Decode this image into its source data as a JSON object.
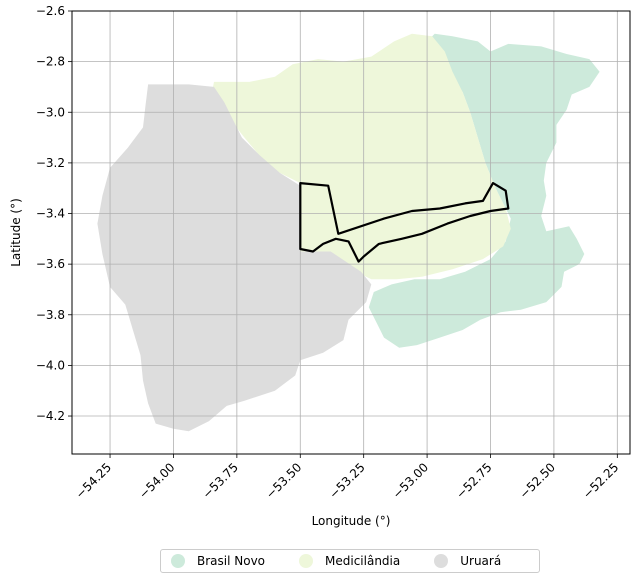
{
  "chart_data": {
    "type": "map",
    "title": "",
    "xlabel": "Longitude (°)",
    "ylabel": "Latitude (°)",
    "xlim": [
      -54.4,
      -52.2
    ],
    "ylim": [
      -4.35,
      -2.6
    ],
    "xticks": [
      -54.25,
      -54.0,
      -53.75,
      -53.5,
      -53.25,
      -53.0,
      -52.75,
      -52.5,
      -52.25
    ],
    "xtick_labels": [
      "−54.25",
      "−54.00",
      "−53.75",
      "−53.50",
      "−53.25",
      "−53.00",
      "−52.75",
      "−52.50",
      "−52.25"
    ],
    "yticks": [
      -2.6,
      -2.8,
      -3.0,
      -3.2,
      -3.4,
      -3.6,
      -3.8,
      -4.0,
      -4.2
    ],
    "ytick_labels": [
      "−2.6",
      "−2.8",
      "−3.0",
      "−3.2",
      "−3.4",
      "−3.6",
      "−3.8",
      "−4.0",
      "−4.2"
    ],
    "grid": true,
    "legend_position": "bottom-center",
    "regions": [
      {
        "name": "Brasil Novo",
        "color": "#cdeadb",
        "polygon": [
          [
            -53.0,
            -2.72
          ],
          [
            -52.97,
            -2.69
          ],
          [
            -52.9,
            -2.7
          ],
          [
            -52.8,
            -2.72
          ],
          [
            -52.75,
            -2.76
          ],
          [
            -52.68,
            -2.73
          ],
          [
            -52.55,
            -2.74
          ],
          [
            -52.45,
            -2.77
          ],
          [
            -52.36,
            -2.79
          ],
          [
            -52.32,
            -2.84
          ],
          [
            -52.36,
            -2.9
          ],
          [
            -52.43,
            -2.93
          ],
          [
            -52.45,
            -2.99
          ],
          [
            -52.49,
            -3.05
          ],
          [
            -52.49,
            -3.12
          ],
          [
            -52.53,
            -3.2
          ],
          [
            -52.54,
            -3.27
          ],
          [
            -52.53,
            -3.33
          ],
          [
            -52.55,
            -3.41
          ],
          [
            -52.53,
            -3.47
          ],
          [
            -52.44,
            -3.45
          ],
          [
            -52.41,
            -3.5
          ],
          [
            -52.38,
            -3.56
          ],
          [
            -52.4,
            -3.6
          ],
          [
            -52.46,
            -3.63
          ],
          [
            -52.47,
            -3.69
          ],
          [
            -52.53,
            -3.75
          ],
          [
            -52.63,
            -3.78
          ],
          [
            -52.71,
            -3.79
          ],
          [
            -52.79,
            -3.82
          ],
          [
            -52.86,
            -3.86
          ],
          [
            -52.95,
            -3.89
          ],
          [
            -53.04,
            -3.92
          ],
          [
            -53.11,
            -3.93
          ],
          [
            -53.17,
            -3.89
          ],
          [
            -53.2,
            -3.83
          ],
          [
            -53.23,
            -3.77
          ],
          [
            -53.21,
            -3.71
          ],
          [
            -53.14,
            -3.68
          ],
          [
            -53.05,
            -3.66
          ],
          [
            -52.95,
            -3.66
          ],
          [
            -52.85,
            -3.63
          ],
          [
            -52.75,
            -3.58
          ],
          [
            -52.69,
            -3.51
          ],
          [
            -52.67,
            -3.42
          ],
          [
            -52.73,
            -3.3
          ],
          [
            -52.77,
            -3.2
          ],
          [
            -52.8,
            -3.1
          ],
          [
            -52.83,
            -3.0
          ],
          [
            -52.86,
            -2.92
          ],
          [
            -52.92,
            -2.85
          ],
          [
            -52.96,
            -2.78
          ]
        ]
      },
      {
        "name": "Medicilândia",
        "color": "#eef7da",
        "polygon": [
          [
            -53.84,
            -2.88
          ],
          [
            -53.7,
            -2.88
          ],
          [
            -53.6,
            -2.86
          ],
          [
            -53.53,
            -2.81
          ],
          [
            -53.43,
            -2.79
          ],
          [
            -53.33,
            -2.8
          ],
          [
            -53.22,
            -2.78
          ],
          [
            -53.13,
            -2.72
          ],
          [
            -53.06,
            -2.69
          ],
          [
            -52.98,
            -2.7
          ],
          [
            -52.93,
            -2.76
          ],
          [
            -52.9,
            -2.84
          ],
          [
            -52.86,
            -2.92
          ],
          [
            -52.83,
            -3.0
          ],
          [
            -52.8,
            -3.1
          ],
          [
            -52.77,
            -3.2
          ],
          [
            -52.73,
            -3.3
          ],
          [
            -52.69,
            -3.38
          ],
          [
            -52.67,
            -3.46
          ],
          [
            -52.7,
            -3.53
          ],
          [
            -52.78,
            -3.58
          ],
          [
            -52.9,
            -3.62
          ],
          [
            -53.02,
            -3.65
          ],
          [
            -53.12,
            -3.66
          ],
          [
            -53.22,
            -3.66
          ],
          [
            -53.28,
            -3.63
          ],
          [
            -53.33,
            -3.6
          ],
          [
            -53.38,
            -3.55
          ],
          [
            -53.5,
            -3.55
          ],
          [
            -53.5,
            -3.28
          ],
          [
            -53.62,
            -3.22
          ],
          [
            -53.72,
            -3.1
          ],
          [
            -53.8,
            -3.0
          ],
          [
            -53.85,
            -2.93
          ]
        ]
      },
      {
        "name": "Uruará",
        "color": "#dddddd",
        "polygon": [
          [
            -54.1,
            -2.89
          ],
          [
            -53.94,
            -2.89
          ],
          [
            -53.84,
            -2.9
          ],
          [
            -53.8,
            -2.96
          ],
          [
            -53.76,
            -3.04
          ],
          [
            -53.73,
            -3.1
          ],
          [
            -53.66,
            -3.17
          ],
          [
            -53.58,
            -3.24
          ],
          [
            -53.5,
            -3.29
          ],
          [
            -53.5,
            -3.55
          ],
          [
            -53.38,
            -3.55
          ],
          [
            -53.32,
            -3.59
          ],
          [
            -53.26,
            -3.63
          ],
          [
            -53.22,
            -3.68
          ],
          [
            -53.24,
            -3.75
          ],
          [
            -53.31,
            -3.82
          ],
          [
            -53.33,
            -3.9
          ],
          [
            -53.41,
            -3.95
          ],
          [
            -53.5,
            -3.98
          ],
          [
            -53.52,
            -4.04
          ],
          [
            -53.6,
            -4.1
          ],
          [
            -53.72,
            -4.14
          ],
          [
            -53.79,
            -4.16
          ],
          [
            -53.86,
            -4.22
          ],
          [
            -53.94,
            -4.26
          ],
          [
            -54.0,
            -4.25
          ],
          [
            -54.07,
            -4.23
          ],
          [
            -54.1,
            -4.15
          ],
          [
            -54.12,
            -4.06
          ],
          [
            -54.13,
            -3.96
          ],
          [
            -54.16,
            -3.86
          ],
          [
            -54.19,
            -3.76
          ],
          [
            -54.25,
            -3.69
          ],
          [
            -54.28,
            -3.56
          ],
          [
            -54.3,
            -3.44
          ],
          [
            -54.28,
            -3.33
          ],
          [
            -54.25,
            -3.22
          ],
          [
            -54.18,
            -3.14
          ],
          [
            -54.12,
            -3.06
          ],
          [
            -54.11,
            -2.97
          ]
        ]
      }
    ],
    "outline": {
      "color": "#000000",
      "polygon": [
        [
          -53.5,
          -3.28
        ],
        [
          -53.39,
          -3.29
        ],
        [
          -53.35,
          -3.48
        ],
        [
          -53.17,
          -3.42
        ],
        [
          -53.06,
          -3.39
        ],
        [
          -52.95,
          -3.38
        ],
        [
          -52.85,
          -3.36
        ],
        [
          -52.78,
          -3.35
        ],
        [
          -52.74,
          -3.28
        ],
        [
          -52.69,
          -3.31
        ],
        [
          -52.68,
          -3.38
        ],
        [
          -52.75,
          -3.39
        ],
        [
          -52.83,
          -3.41
        ],
        [
          -52.92,
          -3.44
        ],
        [
          -53.02,
          -3.48
        ],
        [
          -53.1,
          -3.5
        ],
        [
          -53.19,
          -3.52
        ],
        [
          -53.25,
          -3.57
        ],
        [
          -53.27,
          -3.59
        ],
        [
          -53.31,
          -3.51
        ],
        [
          -53.36,
          -3.5
        ],
        [
          -53.41,
          -3.52
        ],
        [
          -53.45,
          -3.55
        ],
        [
          -53.5,
          -3.54
        ]
      ]
    },
    "legend": [
      "Brasil Novo",
      "Medicilândia",
      "Uruará"
    ]
  }
}
